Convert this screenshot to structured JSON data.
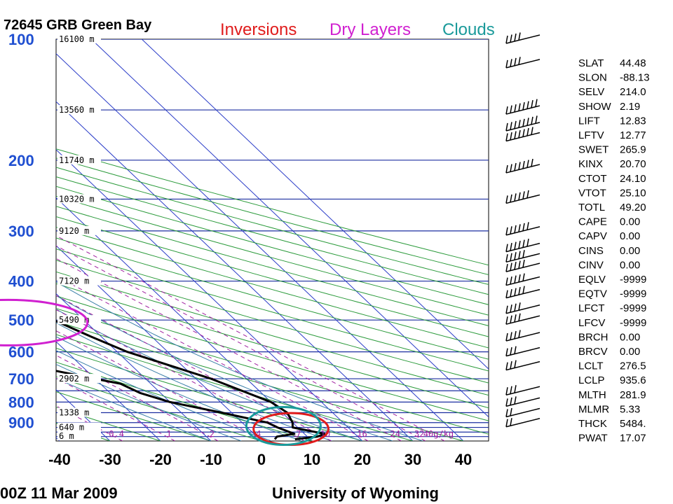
{
  "station_title": "72645 GRB Green Bay",
  "legend": [
    {
      "label": "Inversions",
      "color": "#e01c1c"
    },
    {
      "label": "Dry Layers",
      "color": "#d020d0"
    },
    {
      "label": "Clouds",
      "color": "#1a9a9a"
    }
  ],
  "footer": {
    "time": "00Z 11 Mar 2009",
    "source": "University of Wyoming"
  },
  "mixing_ratio_labels": [
    "0.4",
    "1",
    "2",
    "4",
    "7",
    "10",
    "16",
    "24",
    "32",
    "40g/kg"
  ],
  "indices": [
    {
      "name": "SLAT",
      "value": "44.48"
    },
    {
      "name": "SLON",
      "value": "-88.13"
    },
    {
      "name": "SELV",
      "value": "214.0"
    },
    {
      "name": "SHOW",
      "value": "2.19"
    },
    {
      "name": "LIFT",
      "value": "12.83"
    },
    {
      "name": "LFTV",
      "value": "12.77"
    },
    {
      "name": "SWET",
      "value": "265.9"
    },
    {
      "name": "KINX",
      "value": "20.70"
    },
    {
      "name": "CTOT",
      "value": "24.10"
    },
    {
      "name": "VTOT",
      "value": "25.10"
    },
    {
      "name": "TOTL",
      "value": "49.20"
    },
    {
      "name": "CAPE",
      "value": "0.00"
    },
    {
      "name": "CAPV",
      "value": "0.00"
    },
    {
      "name": "CINS",
      "value": "0.00"
    },
    {
      "name": "CINV",
      "value": "0.00"
    },
    {
      "name": "EQLV",
      "value": "-9999"
    },
    {
      "name": "EQTV",
      "value": "-9999"
    },
    {
      "name": "LFCT",
      "value": "-9999"
    },
    {
      "name": "LFCV",
      "value": "-9999"
    },
    {
      "name": "BRCH",
      "value": "0.00"
    },
    {
      "name": "BRCV",
      "value": "0.00"
    },
    {
      "name": "LCLT",
      "value": "276.5"
    },
    {
      "name": "LCLP",
      "value": "935.6"
    },
    {
      "name": "MLTH",
      "value": "281.9"
    },
    {
      "name": "MLMR",
      "value": "5.33"
    },
    {
      "name": "THCK",
      "value": "5484."
    },
    {
      "name": "PWAT",
      "value": "17.07"
    }
  ],
  "chart_data": {
    "type": "line",
    "chart_kind": "skew-T log-p sounding",
    "x_axis_ticks": [
      -40,
      -30,
      -20,
      -10,
      0,
      10,
      20,
      30,
      40
    ],
    "xlim": [
      -40,
      45
    ],
    "y_axis": {
      "scale": "log",
      "inverted": true,
      "ticks": [
        100,
        200,
        300,
        400,
        500,
        600,
        700,
        800,
        900
      ],
      "range_hPa": [
        100,
        1000
      ]
    },
    "height_labels": [
      "16100 m",
      "13560 m",
      "11740 m",
      "10320 m",
      "9120 m",
      "7120 m",
      "5490 m",
      "2902 m",
      "1338 m",
      "640 m",
      "6 m"
    ],
    "isobar_levels_hPa": [
      100,
      150,
      200,
      250,
      300,
      400,
      500,
      600,
      700,
      750,
      800,
      850,
      900,
      925,
      950,
      975,
      1000
    ],
    "series": [
      {
        "role": "temperature",
        "color": "#000000",
        "points_p_T": [
          [
            990,
            7
          ],
          [
            975,
            12
          ],
          [
            960,
            14
          ],
          [
            925,
            9
          ],
          [
            900,
            10
          ],
          [
            850,
            11
          ],
          [
            800,
            10
          ],
          [
            700,
            3
          ],
          [
            600,
            -8
          ],
          [
            550,
            -12
          ],
          [
            500,
            -16
          ],
          [
            450,
            -20
          ],
          [
            400,
            -26
          ],
          [
            350,
            -34
          ],
          [
            300,
            -40
          ],
          [
            260,
            -46
          ],
          [
            240,
            -52
          ],
          [
            230,
            -51
          ],
          [
            215,
            -53
          ],
          [
            200,
            -52
          ],
          [
            180,
            -54
          ],
          [
            160,
            -55
          ],
          [
            140,
            -55
          ],
          [
            120,
            -56
          ],
          [
            105,
            -57
          ],
          [
            100,
            -57
          ]
        ]
      },
      {
        "role": "dewpoint",
        "color": "#000000",
        "points_p_T": [
          [
            990,
            3
          ],
          [
            975,
            4
          ],
          [
            960,
            8
          ],
          [
            925,
            6
          ],
          [
            900,
            5
          ],
          [
            850,
            -2
          ],
          [
            800,
            -10
          ],
          [
            760,
            -14
          ],
          [
            720,
            -16
          ],
          [
            700,
            -20
          ],
          [
            650,
            -30
          ],
          [
            600,
            -32
          ],
          [
            500,
            -36
          ],
          [
            450,
            -38
          ],
          [
            410,
            -40
          ],
          [
            380,
            -40
          ],
          [
            360,
            -38
          ],
          [
            350,
            -37
          ],
          [
            320,
            -42
          ],
          [
            300,
            -47
          ],
          [
            260,
            -56
          ],
          [
            240,
            -57
          ],
          [
            220,
            -58
          ],
          [
            200,
            -58
          ],
          [
            180,
            -62
          ],
          [
            150,
            -64
          ],
          [
            130,
            -66
          ],
          [
            110,
            -67
          ],
          [
            100,
            -67
          ]
        ]
      }
    ],
    "annotations": [
      {
        "label": "Inversions",
        "color": "#e01c1c",
        "layers_hPa": [
          [
            260,
            200
          ],
          [
            990,
            880
          ]
        ]
      },
      {
        "label": "Dry Layers",
        "color": "#d020d0",
        "layers_hPa": [
          [
            560,
            460
          ]
        ]
      },
      {
        "label": "Clouds",
        "color": "#1a9a9a",
        "layers_hPa": [
          [
            990,
            850
          ]
        ]
      }
    ],
    "wind_barbs_speed_kt": [
      35,
      40,
      80,
      80,
      70,
      65,
      60,
      55,
      55,
      50,
      50,
      45,
      45,
      40,
      35,
      35,
      30,
      25,
      25,
      25,
      20,
      15
    ]
  }
}
